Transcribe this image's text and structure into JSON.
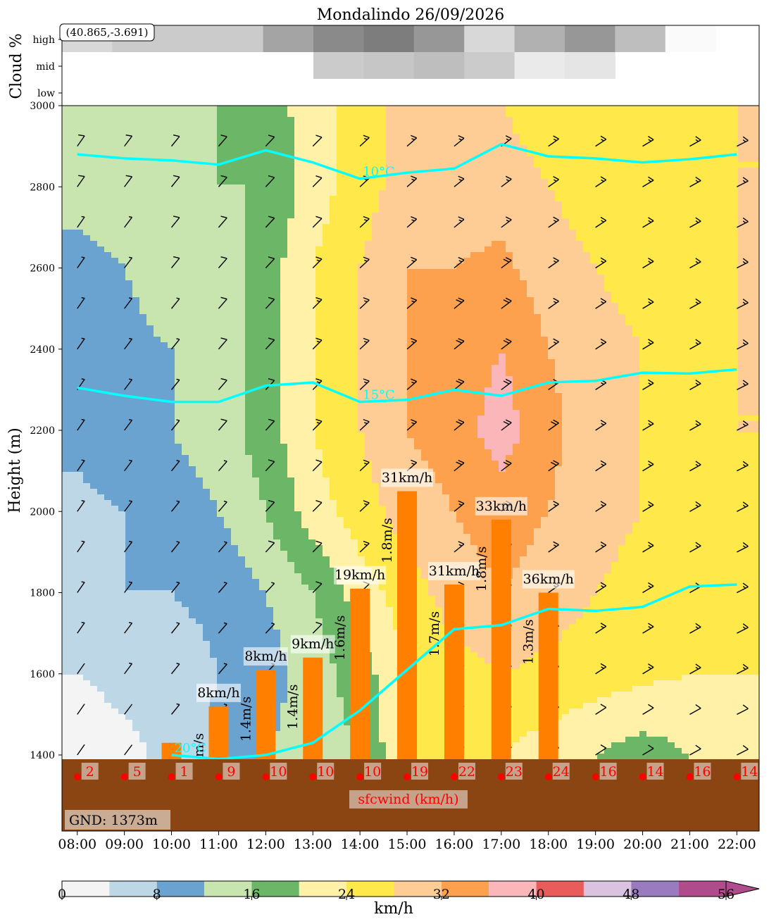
{
  "chart_data": {
    "type": "heatmap",
    "title": "Mondalindo 26/09/2026",
    "coords_label": "(40.865,-3.691)",
    "cloud_panel": {
      "ylabel": "Cloud %",
      "levels": [
        "low",
        "mid",
        "high"
      ],
      "high": [
        15,
        20,
        20,
        20,
        35,
        45,
        50,
        40,
        15,
        30,
        40,
        25,
        2,
        0
      ],
      "mid": [
        0,
        0,
        0,
        0,
        0,
        20,
        22,
        25,
        20,
        8,
        10,
        0,
        0,
        0
      ],
      "low": [
        0,
        0,
        0,
        0,
        0,
        0,
        0,
        0,
        0,
        0,
        0,
        0,
        0,
        0
      ]
    },
    "main_panel": {
      "ylabel": "Height (m)",
      "ylim": [
        1373,
        3000
      ],
      "yticks": [
        "1400",
        "1600",
        "1800",
        "2000",
        "2200",
        "2400",
        "2600",
        "2800",
        "3000"
      ],
      "ytick_values": [
        1400,
        1600,
        1800,
        2000,
        2200,
        2400,
        2600,
        2800,
        3000
      ],
      "x_hours": [
        8,
        9,
        10,
        11,
        12,
        13,
        14,
        15,
        16,
        17,
        18,
        19,
        20,
        21,
        22
      ],
      "xticks": [
        "08:00",
        "09:00",
        "10:00",
        "11:00",
        "12:00",
        "13:00",
        "14:00",
        "15:00",
        "16:00",
        "17:00",
        "18:00",
        "19:00",
        "20:00",
        "21:00",
        "22:00"
      ],
      "wind_speed_kmh_levels": [
        1400,
        1600,
        1800,
        2000,
        2200,
        2400,
        2600,
        2800,
        3000
      ],
      "wind_speed_kmh": [
        [
          2,
          3,
          5,
          9,
          12,
          14,
          16,
          24,
          26,
          24,
          22,
          20,
          18,
          20,
          22
        ],
        [
          4,
          5,
          6,
          8,
          10,
          14,
          18,
          24,
          26,
          28,
          27,
          26,
          25,
          24,
          24
        ],
        [
          6,
          8,
          8,
          9,
          12,
          16,
          22,
          26,
          30,
          32,
          30,
          28,
          26,
          26,
          26
        ],
        [
          7,
          8,
          10,
          12,
          16,
          22,
          26,
          30,
          32,
          34,
          32,
          30,
          28,
          26,
          26
        ],
        [
          9,
          11,
          12,
          14,
          18,
          24,
          28,
          32,
          34,
          38,
          33,
          30,
          28,
          26,
          28
        ],
        [
          9,
          11,
          12,
          14,
          18,
          24,
          28,
          32,
          33,
          36,
          32,
          30,
          28,
          26,
          28
        ],
        [
          10,
          12,
          14,
          14,
          18,
          24,
          28,
          32,
          32,
          33,
          30,
          28,
          26,
          26,
          28
        ],
        [
          14,
          15,
          16,
          16,
          16,
          22,
          26,
          30,
          30,
          30,
          28,
          26,
          26,
          26,
          28
        ],
        [
          14,
          14,
          14,
          16,
          18,
          22,
          26,
          30,
          30,
          28,
          26,
          26,
          24,
          26,
          28
        ]
      ],
      "isotherms": [
        {
          "label": "10°C",
          "heights": [
            2880,
            2870,
            2865,
            2855,
            2890,
            2860,
            2820,
            2835,
            2845,
            2905,
            2875,
            2870,
            2860,
            2868,
            2880
          ]
        },
        {
          "label": "15°C",
          "heights": [
            2305,
            2285,
            2270,
            2270,
            2310,
            2318,
            2270,
            2275,
            2300,
            2285,
            2318,
            2322,
            2342,
            2340,
            2350
          ]
        },
        {
          "label": "20°C",
          "heights": [
            null,
            null,
            1400,
            1390,
            1400,
            1430,
            1510,
            1610,
            1710,
            1720,
            1760,
            1755,
            1765,
            1815,
            1820
          ]
        }
      ],
      "thermals": [
        {
          "hour": 10.0,
          "top": 1430,
          "speed_label": "",
          "climb_label": ""
        },
        {
          "hour": 11.0,
          "top": 1520,
          "speed_label": "8km/h",
          "climb_label": "m/s"
        },
        {
          "hour": 12.0,
          "top": 1610,
          "speed_label": "8km/h",
          "climb_label": "1.4m/s"
        },
        {
          "hour": 13.0,
          "top": 1640,
          "speed_label": "9km/h",
          "climb_label": "1.4m/s"
        },
        {
          "hour": 14.0,
          "top": 1810,
          "speed_label": "19km/h",
          "climb_label": "1.6m/s"
        },
        {
          "hour": 15.0,
          "top": 2050,
          "speed_label": "31km/h",
          "climb_label": "1.8m/s"
        },
        {
          "hour": 16.0,
          "top": 1820,
          "speed_label": "31km/h",
          "climb_label": "1.7m/s"
        },
        {
          "hour": 17.0,
          "top": 1980,
          "speed_label": "33km/h",
          "climb_label": "1.8m/s"
        },
        {
          "hour": 18.0,
          "top": 1800,
          "speed_label": "36km/h",
          "climb_label": "1.3m/s"
        }
      ],
      "surface_wind_label": "sfcwind (km/h)",
      "surface_wind": [
        "2",
        "5",
        "1",
        "9",
        "10",
        "10",
        "10",
        "19",
        "22",
        "23",
        "24",
        "16",
        "14",
        "16",
        "14"
      ],
      "ground_label": "GND: 1373m"
    },
    "colorbar": {
      "label": "km/h",
      "tick_labels": [
        "0",
        "8",
        "16",
        "24",
        "32",
        "40",
        "48",
        "56"
      ],
      "bounds": [
        0,
        4,
        8,
        12,
        16,
        20,
        24,
        28,
        32,
        36,
        40,
        44,
        48,
        52,
        56
      ],
      "colors": [
        "#f4f4f4",
        "#bdd7e7",
        "#6aa3cf",
        "#c8e5b0",
        "#6cb767",
        "#fff2a8",
        "#ffe84a",
        "#fdcd95",
        "#fda14e",
        "#fab6b8",
        "#e95c5c",
        "#d9c3e0",
        "#9b7bbf",
        "#b04c8c"
      ],
      "extend_color": "#b04c8c"
    },
    "colors": {
      "isotherm": "#00ffff",
      "thermal": "#ff7f00",
      "ground": "#8b4513",
      "surface_wind": "#ff0000"
    }
  }
}
